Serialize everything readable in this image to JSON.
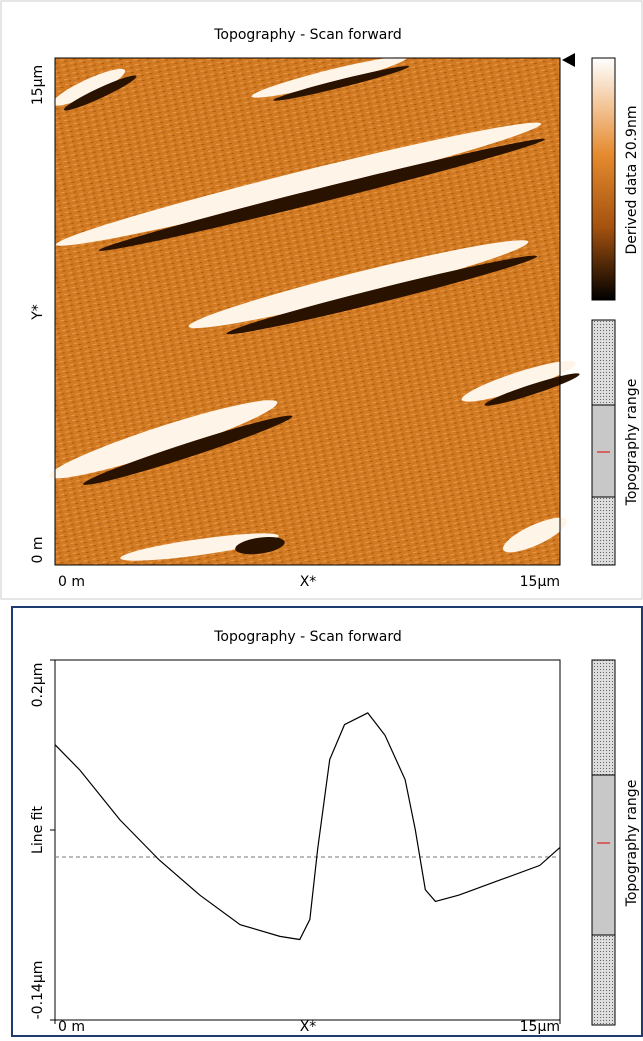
{
  "top_panel": {
    "title": "Topography - Scan forward",
    "y_axis": {
      "max_label": "15µm",
      "label": "Y*",
      "min_label": "0 m"
    },
    "x_axis": {
      "min_label": "0 m",
      "label": "X*",
      "max_label": "15µm"
    },
    "colorbar_label": "Derived data 20.9nm",
    "range_label": "Topography range"
  },
  "chart_data": {
    "type": "line",
    "title": "Topography - Scan forward",
    "x_label": "X*",
    "y_label": "Line fit",
    "x": [
      0,
      0.74,
      1.93,
      3.1,
      4.3,
      5.5,
      6.68,
      7.27,
      7.57,
      7.8,
      8.16,
      8.6,
      9.29,
      9.8,
      10.4,
      10.7,
      11.0,
      11.3,
      12.0,
      13.2,
      14.4,
      15
    ],
    "values": [
      0.12,
      0.096,
      0.049,
      0.011,
      -0.022,
      -0.05,
      -0.061,
      -0.064,
      -0.045,
      0.021,
      0.106,
      0.139,
      0.15,
      0.129,
      0.087,
      0.04,
      -0.017,
      -0.028,
      -0.022,
      -0.008,
      0.006,
      0.023
    ],
    "color": "#000000",
    "reference_line": 0.014,
    "xlim": [
      0,
      15
    ],
    "ylim": [
      -0.14,
      0.2
    ],
    "xticks": [
      {
        "value": 0,
        "label": "0 m"
      },
      {
        "value": 15,
        "label": "15µm"
      }
    ],
    "yticks": [
      {
        "value": -0.14,
        "label": "-0.14µm"
      },
      {
        "value": 0.2,
        "label": "0.2µm"
      }
    ],
    "range_label": "Topography range"
  }
}
